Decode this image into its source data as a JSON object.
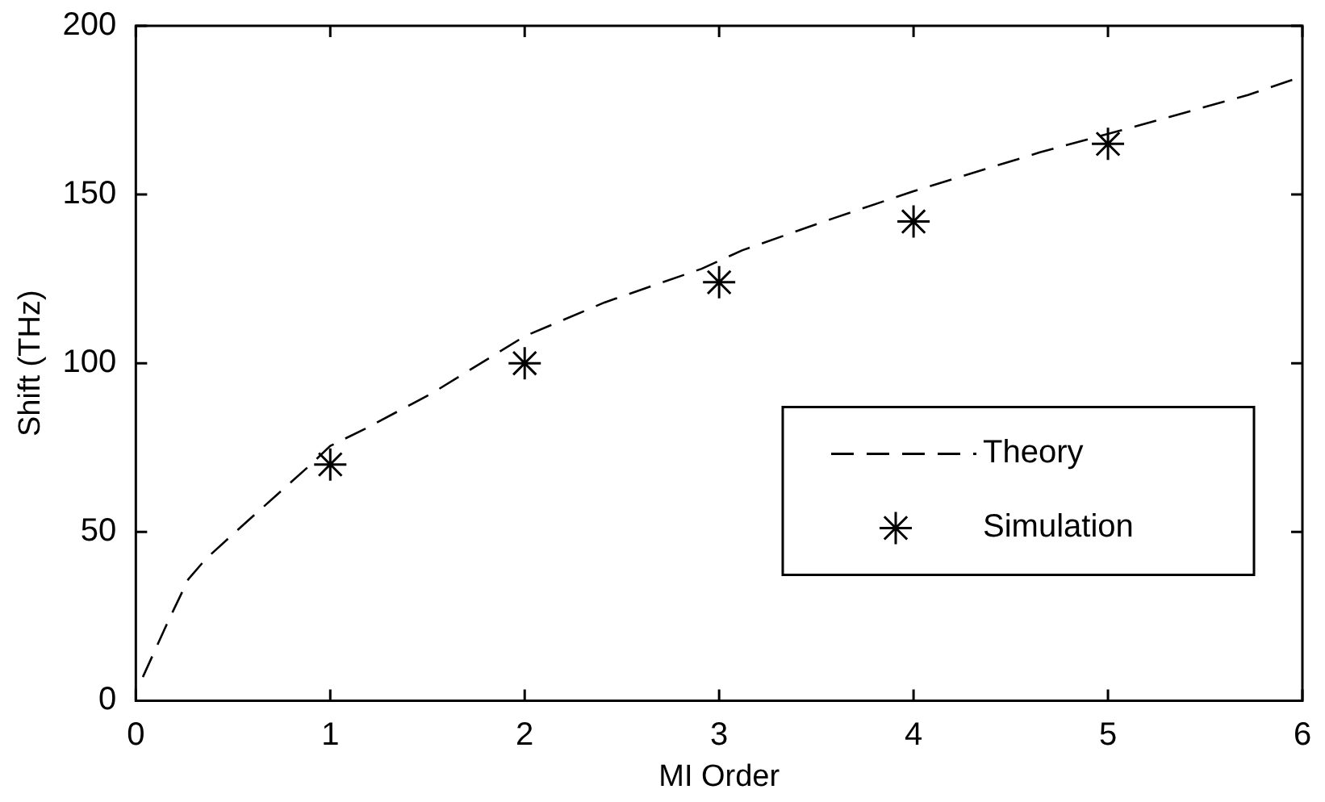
{
  "chart_data": {
    "type": "line",
    "xlabel": "MI Order",
    "ylabel": "Shift (THz)",
    "xlim": [
      0,
      6
    ],
    "xticks": [
      0,
      1,
      2,
      3,
      4,
      5,
      6
    ],
    "ylim": [
      0,
      200
    ],
    "yticks": [
      0,
      50,
      100,
      150,
      200
    ],
    "grid": false,
    "legend": "bottom right",
    "series": [
      {
        "name": "Theory",
        "type": "line",
        "color": "#000000",
        "line_style": "dashed",
        "marker": "none",
        "x": [
          0.036,
          0.17,
          0.27,
          0.36,
          0.57,
          0.9,
          1,
          1.18,
          1.52,
          2,
          2.41,
          2.91,
          3.12,
          3.59,
          4,
          4.65,
          5.13,
          5.72,
          6
        ],
        "values": [
          7,
          24,
          36,
          42,
          53,
          70,
          75.5,
          80.6,
          91,
          108,
          118,
          128,
          133.5,
          143,
          151,
          162.5,
          170,
          179.5,
          185
        ]
      },
      {
        "name": "Simulation",
        "type": "scatter",
        "color": "#000000",
        "marker": "cross",
        "x": [
          1,
          2,
          3,
          4,
          5
        ],
        "values": [
          70,
          100,
          124,
          142,
          165
        ]
      }
    ]
  }
}
